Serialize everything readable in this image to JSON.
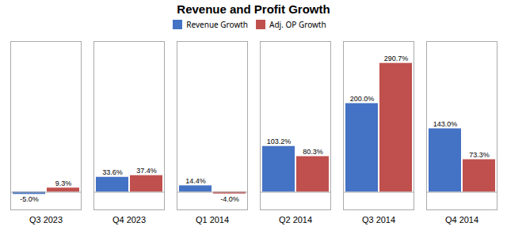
{
  "chart_data": {
    "type": "bar",
    "title": "Revenue and Profit Growth",
    "categories": [
      "Q3 2023",
      "Q4 2023",
      "Q1 2014",
      "Q2 2014",
      "Q3 2014",
      "Q4 2014"
    ],
    "series": [
      {
        "name": "Revenue Growth",
        "color": "#4472C4",
        "values": [
          -5.0,
          33.6,
          14.4,
          103.2,
          200.0,
          143.0
        ],
        "value_labels": [
          "-5.0%",
          "33.6%",
          "14.4%",
          "103.2%",
          "200.0%",
          "143.0%"
        ]
      },
      {
        "name": "Adj. OP Growth",
        "color": "#C0504D",
        "values": [
          9.3,
          37.4,
          -4.0,
          80.3,
          290.7,
          73.3
        ],
        "value_labels": [
          "9.3%",
          "37.4%",
          "-4.0%",
          "80.3%",
          "290.7%",
          "73.3%"
        ]
      }
    ],
    "ylim": [
      -40,
      340
    ],
    "yticks": [],
    "tick_labels": "x",
    "data_labels": true,
    "legend": "top",
    "grid": false
  }
}
